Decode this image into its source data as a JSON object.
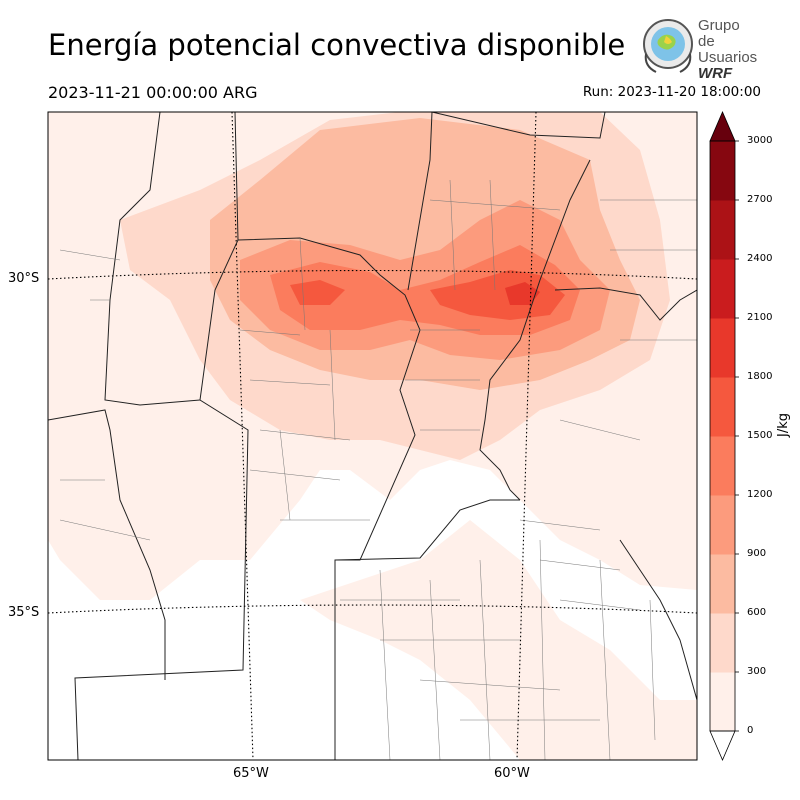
{
  "title": "Energía potencial convectiva disponible",
  "valid_time": "2023-11-21 00:00:00 ARG",
  "run_time": "Run: 2023-11-20 18:00:00",
  "logo": {
    "line1": "Grupo de",
    "line2": "Usuarios",
    "line3": "WRF"
  },
  "lat_labels": [
    "30°S",
    "35°S"
  ],
  "lon_labels": [
    "65°W",
    "60°W"
  ],
  "colorbar": {
    "units": "J/kg",
    "ticks": [
      "0",
      "300",
      "600",
      "900",
      "1200",
      "1500",
      "1800",
      "2100",
      "2400",
      "2700",
      "3000"
    ],
    "colors": [
      "#fff0ea",
      "#fed9cb",
      "#fcbba1",
      "#fc9b7d",
      "#fb7c5d",
      "#f5583e",
      "#e8382b",
      "#ca1c1e",
      "#ac1216",
      "#860710",
      "#67000d"
    ]
  },
  "cape_areas": [
    {
      "level": 0,
      "name": "northwest"
    },
    {
      "level": 2,
      "name": "central-band"
    },
    {
      "level": 4,
      "name": "cordoba-core"
    },
    {
      "level": 5,
      "name": "santa-fe-core"
    },
    {
      "level": 6,
      "name": "santa-fe-max"
    }
  ]
}
